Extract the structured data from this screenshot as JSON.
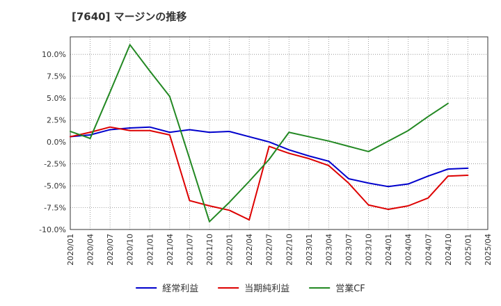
{
  "chart_data": {
    "type": "line",
    "title": "[7640]  マージンの推移",
    "xlabel": "",
    "ylabel": "",
    "x": [
      "2020/01",
      "2020/04",
      "2020/07",
      "2020/10",
      "2021/01",
      "2021/04",
      "2021/07",
      "2021/10",
      "2022/01",
      "2022/04",
      "2022/07",
      "2022/10",
      "2023/01",
      "2023/04",
      "2023/07",
      "2023/10",
      "2024/01",
      "2024/04",
      "2024/07",
      "2024/10",
      "2025/01",
      "2025/04"
    ],
    "ylim": [
      -10,
      12
    ],
    "yticks": [
      -10,
      -7.5,
      -5,
      -2.5,
      0,
      2.5,
      5,
      7.5,
      10
    ],
    "ytick_labels": [
      "-10.0%",
      "-7.5%",
      "-5.0%",
      "-2.5%",
      "0.0%",
      "2.5%",
      "5.0%",
      "7.5%",
      "10.0%"
    ],
    "grid": true,
    "legend_position": "bottom",
    "series": [
      {
        "name": "経常利益",
        "color": "#0000cc",
        "values": [
          0.6,
          0.8,
          1.4,
          1.6,
          1.7,
          1.1,
          1.4,
          1.1,
          1.2,
          0.6,
          0.0,
          -0.9,
          -1.6,
          -2.2,
          -4.2,
          -4.7,
          -5.1,
          -4.8,
          -3.9,
          -3.1,
          -3.0,
          null
        ]
      },
      {
        "name": "当期純利益",
        "color": "#dd0000",
        "values": [
          0.6,
          1.1,
          1.7,
          1.3,
          1.3,
          0.8,
          -6.7,
          -7.3,
          -7.8,
          -8.9,
          -0.5,
          -1.3,
          -1.9,
          -2.7,
          -4.7,
          -7.2,
          -7.7,
          -7.3,
          -6.4,
          -3.9,
          -3.8,
          null
        ]
      },
      {
        "name": "営業CF",
        "color": "#228822",
        "values": [
          1.2,
          0.4,
          5.7,
          11.1,
          8.1,
          5.2,
          -1.9,
          -9.1,
          -6.9,
          -4.5,
          -2.0,
          1.1,
          0.6,
          0.1,
          -0.5,
          -1.1,
          0.1,
          1.3,
          2.9,
          4.4,
          null,
          null
        ]
      }
    ]
  }
}
